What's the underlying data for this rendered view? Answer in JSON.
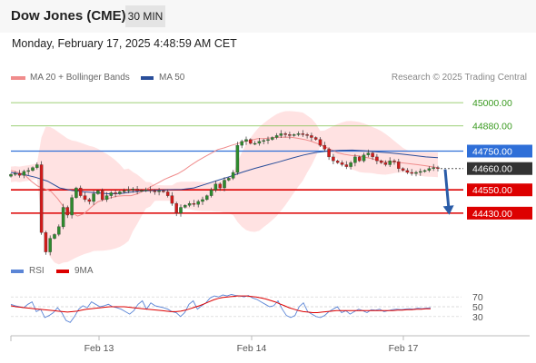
{
  "header": {
    "title": "Dow Jones (CME)",
    "timeframe": "30 MIN"
  },
  "timestamp": "Monday, February 17, 2025 4:48:59 AM CET",
  "legend": {
    "ma20": {
      "label": "MA 20 + Bollinger Bands",
      "color": "#f08c8c"
    },
    "ma50": {
      "label": "MA 50",
      "color": "#2a4e9a"
    }
  },
  "credit": "Research © 2025 Trading Central",
  "colors": {
    "up": "#2e8b2e",
    "down": "#d11b1b",
    "band": "#ffe2e2",
    "current": "#333333"
  },
  "chart_data": [
    {
      "type": "line",
      "ylim": [
        44200,
        45080
      ],
      "x_ticks": [
        "Feb 13",
        "Feb 14",
        "Feb 17"
      ],
      "levels": [
        {
          "label": "45000.00",
          "value": 45000,
          "kind": "resistance-minor",
          "color": "#7cc04a"
        },
        {
          "label": "44880.00",
          "value": 44880,
          "kind": "resistance-minor",
          "color": "#7cc04a"
        },
        {
          "label": "44750.00",
          "value": 44750,
          "kind": "pivot",
          "color": "#2f6fd8"
        },
        {
          "label": "44660.00",
          "value": 44660,
          "kind": "current",
          "color": "#333333"
        },
        {
          "label": "44550.00",
          "value": 44550,
          "kind": "support",
          "color": "#dd0000"
        },
        {
          "label": "44430.00",
          "value": 44430,
          "kind": "support",
          "color": "#dd0000"
        }
      ],
      "forecast_arrow": {
        "from": 44655,
        "to": 44430,
        "color": "#2a5ca8"
      },
      "series": [
        {
          "type": "candlestick",
          "close": [
            44630,
            44635,
            44625,
            44645,
            44650,
            44665,
            44680,
            44330,
            44230,
            44300,
            44320,
            44360,
            44460,
            44420,
            44510,
            44560,
            44520,
            44500,
            44490,
            44530,
            44545,
            44500,
            44520,
            44535,
            44530,
            44540,
            44545,
            44550,
            44555,
            44545,
            44548,
            44550,
            44545,
            44540,
            44545,
            44540,
            44520,
            44480,
            44430,
            44460,
            44470,
            44480,
            44475,
            44490,
            44500,
            44520,
            44550,
            44580,
            44560,
            44600,
            44610,
            44640,
            44780,
            44800,
            44810,
            44790,
            44790,
            44800,
            44805,
            44810,
            44820,
            44830,
            44840,
            44835,
            44830,
            44835,
            44840,
            44835,
            44830,
            44820,
            44810,
            44780,
            44760,
            44720,
            44700,
            44690,
            44680,
            44670,
            44690,
            44720,
            44700,
            44730,
            44740,
            44720,
            44700,
            44690,
            44680,
            44700,
            44695,
            44660,
            44650,
            44640,
            44635,
            44640,
            44645,
            44650,
            44660,
            44665,
            44660
          ]
        },
        {
          "type": "line",
          "name": "MA 20",
          "values": [
            44650,
            44641,
            44630,
            44596,
            44570,
            44556,
            44542,
            44505,
            44458,
            44434,
            44415,
            44428,
            44460,
            44488,
            44500,
            44510,
            44518,
            44520,
            44520,
            44530,
            44546,
            44567,
            44585,
            44604,
            44619,
            44633,
            44653,
            44678,
            44700,
            44720,
            44739,
            44758,
            44767,
            44779,
            44789,
            44799,
            44806,
            44814,
            44815,
            44818,
            44821,
            44822,
            44821,
            44816,
            44810,
            44801,
            44788,
            44773,
            44758,
            44741,
            44733,
            44728,
            44726,
            44719,
            44712,
            44702,
            44696,
            44694,
            44692,
            44688,
            44684,
            44680,
            44675,
            44670,
            44665
          ]
        },
        {
          "type": "line",
          "name": "MA 50",
          "values": [
            44640,
            44630,
            44615,
            44595,
            44560,
            44547,
            44540,
            44535,
            44530,
            44531,
            44540,
            44545,
            44548,
            44551,
            44552,
            44560,
            44580,
            44600,
            44620,
            44642,
            44661,
            44678,
            44695,
            44713,
            44730,
            44743,
            44750,
            44754,
            44755,
            44752,
            44746,
            44741,
            44735,
            44728,
            44720,
            44716
          ]
        }
      ]
    },
    {
      "type": "line",
      "ylim": [
        0,
        100
      ],
      "y_ticks": [
        "70",
        "50",
        "30"
      ],
      "legend": {
        "rsi": {
          "label": "RSI",
          "color": "#5b85d6"
        },
        "ma9": {
          "label": "9MA",
          "color": "#dd0000"
        }
      },
      "series": [
        {
          "name": "RSI",
          "values": [
            55,
            52,
            50,
            48,
            55,
            60,
            40,
            45,
            28,
            32,
            38,
            48,
            38,
            22,
            18,
            30,
            45,
            52,
            48,
            60,
            55,
            50,
            52,
            55,
            50,
            48,
            45,
            40,
            35,
            42,
            55,
            62,
            45,
            58,
            52,
            50,
            48,
            45,
            40,
            38,
            30,
            38,
            55,
            62,
            45,
            52,
            58,
            68,
            72,
            70,
            74,
            72,
            75,
            73,
            72,
            70,
            73,
            68,
            65,
            60,
            55,
            50,
            52,
            62,
            45,
            32,
            28,
            32,
            50,
            58,
            40,
            35,
            30,
            28,
            32,
            40,
            45,
            50,
            38,
            42,
            35,
            40,
            45,
            42,
            38,
            44,
            43,
            45,
            40,
            42,
            44,
            45,
            44,
            45,
            46,
            45,
            47,
            46,
            47,
            48
          ]
        },
        {
          "name": "9MA",
          "values": [
            52,
            50,
            49,
            48,
            47,
            46,
            45,
            44,
            43,
            42,
            41,
            40,
            39,
            40,
            41,
            43,
            45,
            46,
            47,
            48,
            49,
            50,
            50,
            50,
            50,
            49,
            48,
            47,
            46,
            45,
            44,
            43,
            42,
            41,
            40,
            40,
            41,
            43,
            46,
            49,
            52,
            56,
            60,
            64,
            67,
            69,
            70,
            71,
            72,
            72,
            72,
            71,
            70,
            68,
            66,
            63,
            60,
            56,
            52,
            48,
            45,
            42,
            40,
            39,
            38,
            38,
            39,
            40,
            41,
            42,
            42,
            42,
            42,
            42,
            42,
            42,
            42,
            42,
            42,
            42,
            42,
            42,
            43,
            43,
            44,
            44,
            45,
            45,
            46,
            46
          ]
        }
      ]
    }
  ]
}
